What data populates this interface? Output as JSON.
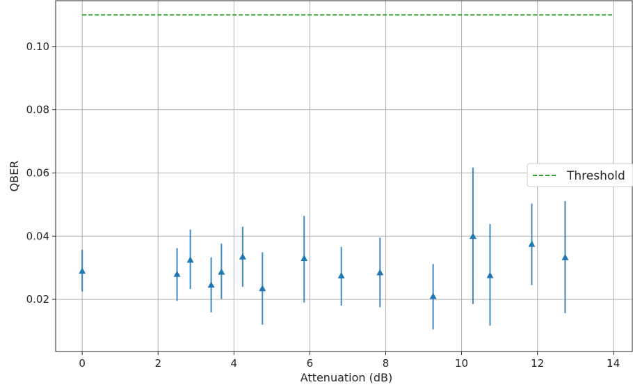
{
  "chart_data": {
    "type": "scatter",
    "xlabel": "Attenuation (dB)",
    "ylabel": "QBER",
    "xlim": [
      -0.7,
      14.5
    ],
    "ylim": [
      0.0035,
      0.1145
    ],
    "x_ticks": [
      0,
      2,
      4,
      6,
      8,
      10,
      12,
      14
    ],
    "y_ticks": [
      0.02,
      0.04,
      0.06,
      0.08,
      0.1
    ],
    "x_tick_labels": [
      "0",
      "2",
      "4",
      "6",
      "8",
      "10",
      "12",
      "14"
    ],
    "y_tick_labels": [
      "0.02",
      "0.04",
      "0.06",
      "0.08",
      "0.10"
    ],
    "grid": true,
    "legend_position": "center-right",
    "series": [
      {
        "marker": "triangle-up",
        "color": "#1f77b4",
        "points": [
          {
            "x": 0.0,
            "y": 0.029,
            "err_low": 0.0225,
            "err_high": 0.0357
          },
          {
            "x": 2.5,
            "y": 0.028,
            "err_low": 0.0195,
            "err_high": 0.0362
          },
          {
            "x": 2.85,
            "y": 0.0325,
            "err_low": 0.0233,
            "err_high": 0.0421
          },
          {
            "x": 3.4,
            "y": 0.0246,
            "err_low": 0.0159,
            "err_high": 0.0333
          },
          {
            "x": 3.67,
            "y": 0.0287,
            "err_low": 0.0201,
            "err_high": 0.0376
          },
          {
            "x": 4.23,
            "y": 0.0335,
            "err_low": 0.024,
            "err_high": 0.043
          },
          {
            "x": 4.75,
            "y": 0.0235,
            "err_low": 0.012,
            "err_high": 0.0349
          },
          {
            "x": 5.85,
            "y": 0.033,
            "err_low": 0.019,
            "err_high": 0.0464
          },
          {
            "x": 6.83,
            "y": 0.0275,
            "err_low": 0.018,
            "err_high": 0.0366
          },
          {
            "x": 7.85,
            "y": 0.0285,
            "err_low": 0.0175,
            "err_high": 0.0395
          },
          {
            "x": 9.25,
            "y": 0.021,
            "err_low": 0.0105,
            "err_high": 0.0312
          },
          {
            "x": 10.3,
            "y": 0.04,
            "err_low": 0.0185,
            "err_high": 0.0617
          },
          {
            "x": 10.75,
            "y": 0.0276,
            "err_low": 0.0117,
            "err_high": 0.0438
          },
          {
            "x": 11.85,
            "y": 0.0375,
            "err_low": 0.0245,
            "err_high": 0.0503
          },
          {
            "x": 12.73,
            "y": 0.0333,
            "err_low": 0.0156,
            "err_high": 0.0511
          }
        ]
      },
      {
        "name": "Threshold",
        "type": "hline",
        "style": "dashed",
        "color": "#2ca02c",
        "y": 0.11,
        "x_range": [
          0,
          14
        ]
      }
    ]
  }
}
